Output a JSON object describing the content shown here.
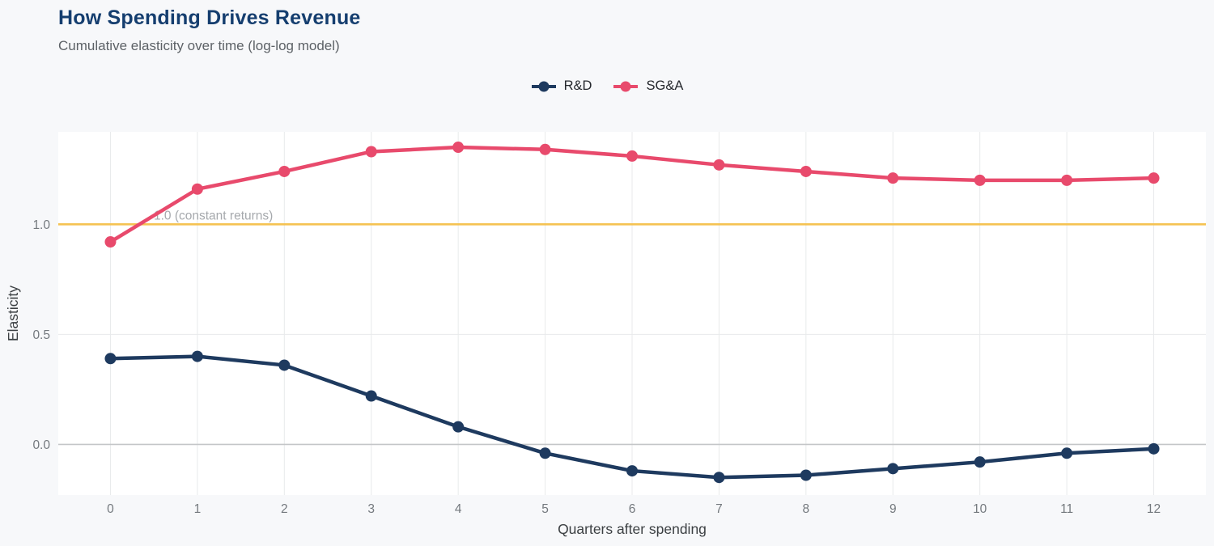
{
  "header": {
    "title": "How Spending Drives Revenue",
    "subtitle": "Cumulative elasticity over time (log-log model)"
  },
  "chart_data": {
    "type": "line",
    "title": "How Spending Drives Revenue",
    "subtitle": "Cumulative elasticity over time (log-log model)",
    "xlabel": "Quarters after spending",
    "ylabel": "Elasticity",
    "x": [
      0,
      1,
      2,
      3,
      4,
      5,
      6,
      7,
      8,
      9,
      10,
      11,
      12
    ],
    "series": [
      {
        "name": "R&D",
        "color": "#1e3a5f",
        "values": [
          0.39,
          0.4,
          0.36,
          0.22,
          0.08,
          -0.04,
          -0.12,
          -0.15,
          -0.14,
          -0.11,
          -0.08,
          -0.04,
          -0.02
        ]
      },
      {
        "name": "SG&A",
        "color": "#e84a6c",
        "values": [
          0.92,
          1.16,
          1.24,
          1.33,
          1.35,
          1.34,
          1.31,
          1.27,
          1.24,
          1.21,
          1.2,
          1.2,
          1.21
        ]
      }
    ],
    "x_ticks": [
      "0",
      "1",
      "2",
      "3",
      "4",
      "5",
      "6",
      "7",
      "8",
      "9",
      "10",
      "11",
      "12"
    ],
    "y_ticks": [
      0.0,
      0.5,
      1.0
    ],
    "y_tick_labels": [
      "0.0",
      "0.5",
      "1.0"
    ],
    "xlim": [
      -0.6,
      12.6
    ],
    "ylim": [
      -0.23,
      1.42
    ],
    "grid": true,
    "legend_position": "top-center",
    "reference_line": {
      "y": 1.0,
      "label": "1.0 (constant returns)",
      "color": "#f5c353"
    }
  },
  "colors": {
    "page_background": "#f7f8fa",
    "plot_background": "#ffffff",
    "gridline": "#e8eaeb",
    "zero_line": "#c4c6c8",
    "tick_label": "#74797e",
    "axis_title": "#3c4043",
    "annotation": "#a6a9ad",
    "title": "#153e6f",
    "subtitle": "#5d6267"
  }
}
